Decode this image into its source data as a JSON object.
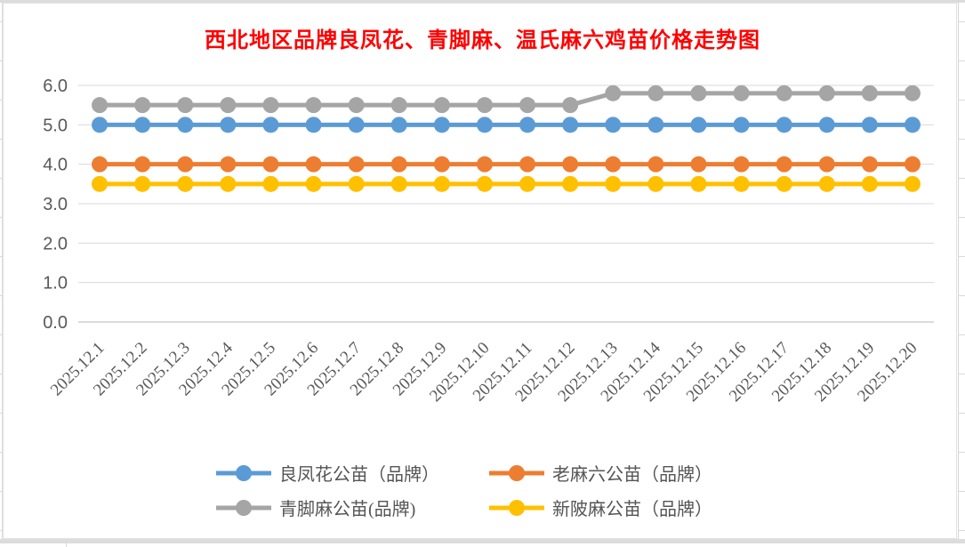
{
  "chart_data": {
    "type": "line",
    "title": "西北地区品牌良凤花、青脚麻、温氏麻六鸡苗价格走势图",
    "title_color": "#FF0000",
    "categories": [
      "2025.12.1",
      "2025.12.2",
      "2025.12.3",
      "2025.12.4",
      "2025.12.5",
      "2025.12.6",
      "2025.12.7",
      "2025.12.8",
      "2025.12.9",
      "2025.12.10",
      "2025.12.11",
      "2025.12.12",
      "2025.12.13",
      "2025.12.14",
      "2025.12.15",
      "2025.12.16",
      "2025.12.17",
      "2025.12.18",
      "2025.12.19",
      "2025.12.20"
    ],
    "series": [
      {
        "name": "良凤花公苗（品牌）",
        "color": "#5B9BD5",
        "values": [
          5.0,
          5.0,
          5.0,
          5.0,
          5.0,
          5.0,
          5.0,
          5.0,
          5.0,
          5.0,
          5.0,
          5.0,
          5.0,
          5.0,
          5.0,
          5.0,
          5.0,
          5.0,
          5.0,
          5.0
        ]
      },
      {
        "name": "老麻六公苗（品牌）",
        "color": "#ED7D31",
        "values": [
          4.0,
          4.0,
          4.0,
          4.0,
          4.0,
          4.0,
          4.0,
          4.0,
          4.0,
          4.0,
          4.0,
          4.0,
          4.0,
          4.0,
          4.0,
          4.0,
          4.0,
          4.0,
          4.0,
          4.0
        ]
      },
      {
        "name": "青脚麻公苗(品牌)",
        "color": "#A5A5A5",
        "values": [
          5.5,
          5.5,
          5.5,
          5.5,
          5.5,
          5.5,
          5.5,
          5.5,
          5.5,
          5.5,
          5.5,
          5.5,
          5.8,
          5.8,
          5.8,
          5.8,
          5.8,
          5.8,
          5.8,
          5.8
        ]
      },
      {
        "name": "新陂麻公苗（品牌）",
        "color": "#FFC000",
        "values": [
          3.5,
          3.5,
          3.5,
          3.5,
          3.5,
          3.5,
          3.5,
          3.5,
          3.5,
          3.5,
          3.5,
          3.5,
          3.5,
          3.5,
          3.5,
          3.5,
          3.5,
          3.5,
          3.5,
          3.5
        ]
      }
    ],
    "xlabel": "",
    "ylabel": "",
    "ylim": [
      0,
      6
    ],
    "y_tick_step": 1,
    "y_tick_labels": [
      "0.0",
      "1.0",
      "2.0",
      "3.0",
      "4.0",
      "5.0",
      "6.0"
    ],
    "grid": "horizontal",
    "gridline_color": "#D9D9D9",
    "axis_line_color": "#CFCFCF",
    "axis_text_color": "#595959",
    "legend_position": "bottom"
  }
}
